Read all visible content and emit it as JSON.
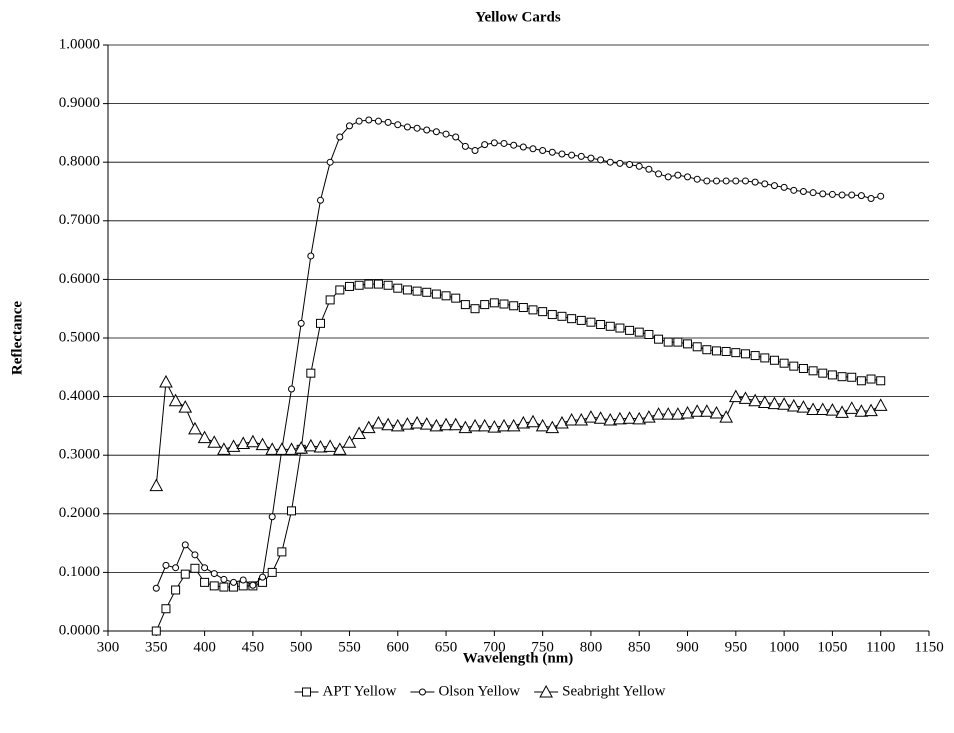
{
  "chart_data": {
    "type": "line",
    "title": "Yellow Cards",
    "xlabel": "Wavelength (nm)",
    "ylabel": "Reflectance",
    "x": [
      350,
      360,
      370,
      380,
      390,
      400,
      410,
      420,
      430,
      440,
      450,
      460,
      470,
      480,
      490,
      500,
      510,
      520,
      530,
      540,
      550,
      560,
      570,
      580,
      590,
      600,
      610,
      620,
      630,
      640,
      650,
      660,
      670,
      680,
      690,
      700,
      710,
      720,
      730,
      740,
      750,
      760,
      770,
      780,
      790,
      800,
      810,
      820,
      830,
      840,
      850,
      860,
      870,
      880,
      890,
      900,
      910,
      920,
      930,
      940,
      950,
      960,
      970,
      980,
      990,
      1000,
      1010,
      1020,
      1030,
      1040,
      1050,
      1060,
      1070,
      1080,
      1090,
      1100
    ],
    "series": [
      {
        "name": "APT Yellow",
        "color": "#000000",
        "marker": "square",
        "values": [
          0.0,
          0.038,
          0.07,
          0.097,
          0.107,
          0.083,
          0.077,
          0.075,
          0.075,
          0.077,
          0.077,
          0.083,
          0.1,
          0.135,
          0.205,
          0.31,
          0.44,
          0.525,
          0.565,
          0.582,
          0.588,
          0.59,
          0.592,
          0.592,
          0.59,
          0.585,
          0.582,
          0.58,
          0.578,
          0.575,
          0.572,
          0.568,
          0.557,
          0.55,
          0.557,
          0.56,
          0.558,
          0.555,
          0.552,
          0.548,
          0.545,
          0.54,
          0.537,
          0.533,
          0.53,
          0.527,
          0.523,
          0.52,
          0.517,
          0.513,
          0.51,
          0.506,
          0.498,
          0.493,
          0.493,
          0.49,
          0.485,
          0.48,
          0.478,
          0.477,
          0.475,
          0.473,
          0.47,
          0.466,
          0.462,
          0.457,
          0.452,
          0.448,
          0.444,
          0.44,
          0.437,
          0.434,
          0.433,
          0.427,
          0.43,
          0.427
        ]
      },
      {
        "name": "Olson Yellow",
        "color": "#000000",
        "marker": "circle",
        "values": [
          0.073,
          0.112,
          0.108,
          0.147,
          0.13,
          0.108,
          0.098,
          0.088,
          0.083,
          0.087,
          0.078,
          0.092,
          0.195,
          0.31,
          0.413,
          0.525,
          0.64,
          0.735,
          0.8,
          0.843,
          0.862,
          0.87,
          0.872,
          0.87,
          0.868,
          0.864,
          0.86,
          0.858,
          0.855,
          0.852,
          0.848,
          0.843,
          0.827,
          0.82,
          0.83,
          0.833,
          0.832,
          0.829,
          0.826,
          0.823,
          0.82,
          0.817,
          0.814,
          0.812,
          0.81,
          0.807,
          0.804,
          0.8,
          0.798,
          0.796,
          0.793,
          0.788,
          0.78,
          0.775,
          0.778,
          0.775,
          0.771,
          0.768,
          0.768,
          0.768,
          0.768,
          0.768,
          0.766,
          0.763,
          0.76,
          0.757,
          0.752,
          0.75,
          0.748,
          0.746,
          0.745,
          0.744,
          0.744,
          0.743,
          0.738,
          0.742
        ]
      },
      {
        "name": "Seabright Yellow",
        "color": "#000000",
        "marker": "triangle",
        "values": [
          0.248,
          0.425,
          0.393,
          0.382,
          0.345,
          0.33,
          0.322,
          0.31,
          0.315,
          0.32,
          0.323,
          0.318,
          0.31,
          0.31,
          0.31,
          0.312,
          0.316,
          0.314,
          0.315,
          0.31,
          0.322,
          0.337,
          0.347,
          0.355,
          0.352,
          0.35,
          0.353,
          0.355,
          0.353,
          0.35,
          0.352,
          0.352,
          0.347,
          0.35,
          0.35,
          0.348,
          0.35,
          0.35,
          0.355,
          0.357,
          0.35,
          0.347,
          0.355,
          0.36,
          0.36,
          0.365,
          0.363,
          0.36,
          0.362,
          0.363,
          0.362,
          0.365,
          0.37,
          0.37,
          0.37,
          0.372,
          0.375,
          0.375,
          0.372,
          0.365,
          0.4,
          0.397,
          0.393,
          0.39,
          0.388,
          0.387,
          0.384,
          0.382,
          0.378,
          0.378,
          0.377,
          0.373,
          0.38,
          0.375,
          0.376,
          0.385
        ]
      }
    ],
    "xlim": [
      300,
      1150
    ],
    "xticks": [
      300,
      350,
      400,
      450,
      500,
      550,
      600,
      650,
      700,
      750,
      800,
      850,
      900,
      950,
      1000,
      1050,
      1100,
      1150
    ],
    "ylim": [
      0,
      1
    ],
    "yticks": [
      {
        "value": 0,
        "label": "0.0000"
      },
      {
        "value": 0.1,
        "label": "0.1000"
      },
      {
        "value": 0.2,
        "label": "0.2000"
      },
      {
        "value": 0.3,
        "label": "0.3000"
      },
      {
        "value": 0.4,
        "label": "0.4000"
      },
      {
        "value": 0.5,
        "label": "0.5000"
      },
      {
        "value": 0.6,
        "label": "0.6000"
      },
      {
        "value": 0.7,
        "label": "0.7000"
      },
      {
        "value": 0.8,
        "label": "0.8000"
      },
      {
        "value": 0.9,
        "label": "0.9000"
      },
      {
        "value": 1,
        "label": "1.0000"
      }
    ],
    "grid": true,
    "legend": "bottom"
  }
}
